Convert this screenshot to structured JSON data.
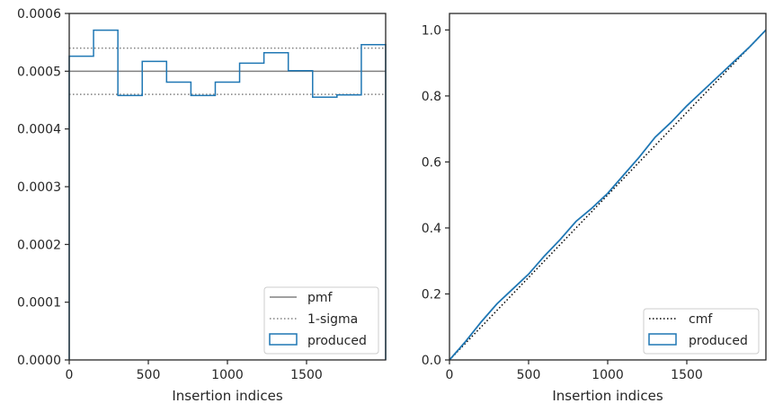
{
  "chart_data": [
    {
      "type": "step",
      "xlabel": "Insertion indices",
      "ylabel": "",
      "xlim": [
        0,
        2000
      ],
      "ylim": [
        0,
        0.0006
      ],
      "xticks": [
        0,
        500,
        1000,
        1500
      ],
      "xtick_labels": [
        "0",
        "500",
        "1000",
        "1500"
      ],
      "yticks": [
        0,
        0.0001,
        0.0002,
        0.0003,
        0.0004,
        0.0005,
        0.0006
      ],
      "ytick_labels": [
        "0.0000",
        "0.0001",
        "0.0002",
        "0.0003",
        "0.0004",
        "0.0005",
        "0.0006"
      ],
      "legend_position": "lower-right",
      "pmf": {
        "name": "pmf",
        "value": 0.0005,
        "color": "#808080"
      },
      "sigma": {
        "name": "1-sigma",
        "upper": 0.00054,
        "lower": 0.00046,
        "color": "#808080"
      },
      "histogram": {
        "name": "produced",
        "color": "#1f77b4",
        "edges": [
          0,
          153.8,
          307.7,
          461.5,
          615.4,
          769.2,
          923.1,
          1076.9,
          1230.8,
          1384.6,
          1538.5,
          1692.3,
          1846.2,
          2000
        ],
        "values": [
          0.000526,
          0.000571,
          0.000458,
          0.000517,
          0.000481,
          0.000458,
          0.000481,
          0.000514,
          0.000532,
          0.000501,
          0.000455,
          0.000459,
          0.000546
        ]
      },
      "grid": false
    },
    {
      "type": "line",
      "xlabel": "Insertion indices",
      "ylabel": "",
      "xlim": [
        0,
        2000
      ],
      "ylim": [
        0,
        1.05
      ],
      "xticks": [
        0,
        500,
        1000,
        1500
      ],
      "xtick_labels": [
        "0",
        "500",
        "1000",
        "1500"
      ],
      "yticks": [
        0,
        0.2,
        0.4,
        0.6,
        0.8,
        1.0
      ],
      "ytick_labels": [
        "0.0",
        "0.2",
        "0.4",
        "0.6",
        "0.8",
        "1.0"
      ],
      "legend_position": "lower-right",
      "series": [
        {
          "name": "cmf",
          "style": "dotted",
          "color": "#000000",
          "x": [
            0,
            2000
          ],
          "y": [
            0,
            1.0
          ]
        },
        {
          "name": "produced",
          "style": "solid",
          "color": "#1f77b4",
          "x": [
            0,
            100,
            200,
            300,
            400,
            500,
            600,
            700,
            800,
            900,
            1000,
            1100,
            1200,
            1300,
            1400,
            1500,
            1600,
            1700,
            1800,
            1900,
            2000
          ],
          "y": [
            0,
            0.055,
            0.115,
            0.17,
            0.215,
            0.26,
            0.315,
            0.365,
            0.42,
            0.46,
            0.505,
            0.56,
            0.615,
            0.675,
            0.72,
            0.77,
            0.815,
            0.86,
            0.905,
            0.95,
            1.0
          ]
        }
      ],
      "grid": false
    }
  ]
}
